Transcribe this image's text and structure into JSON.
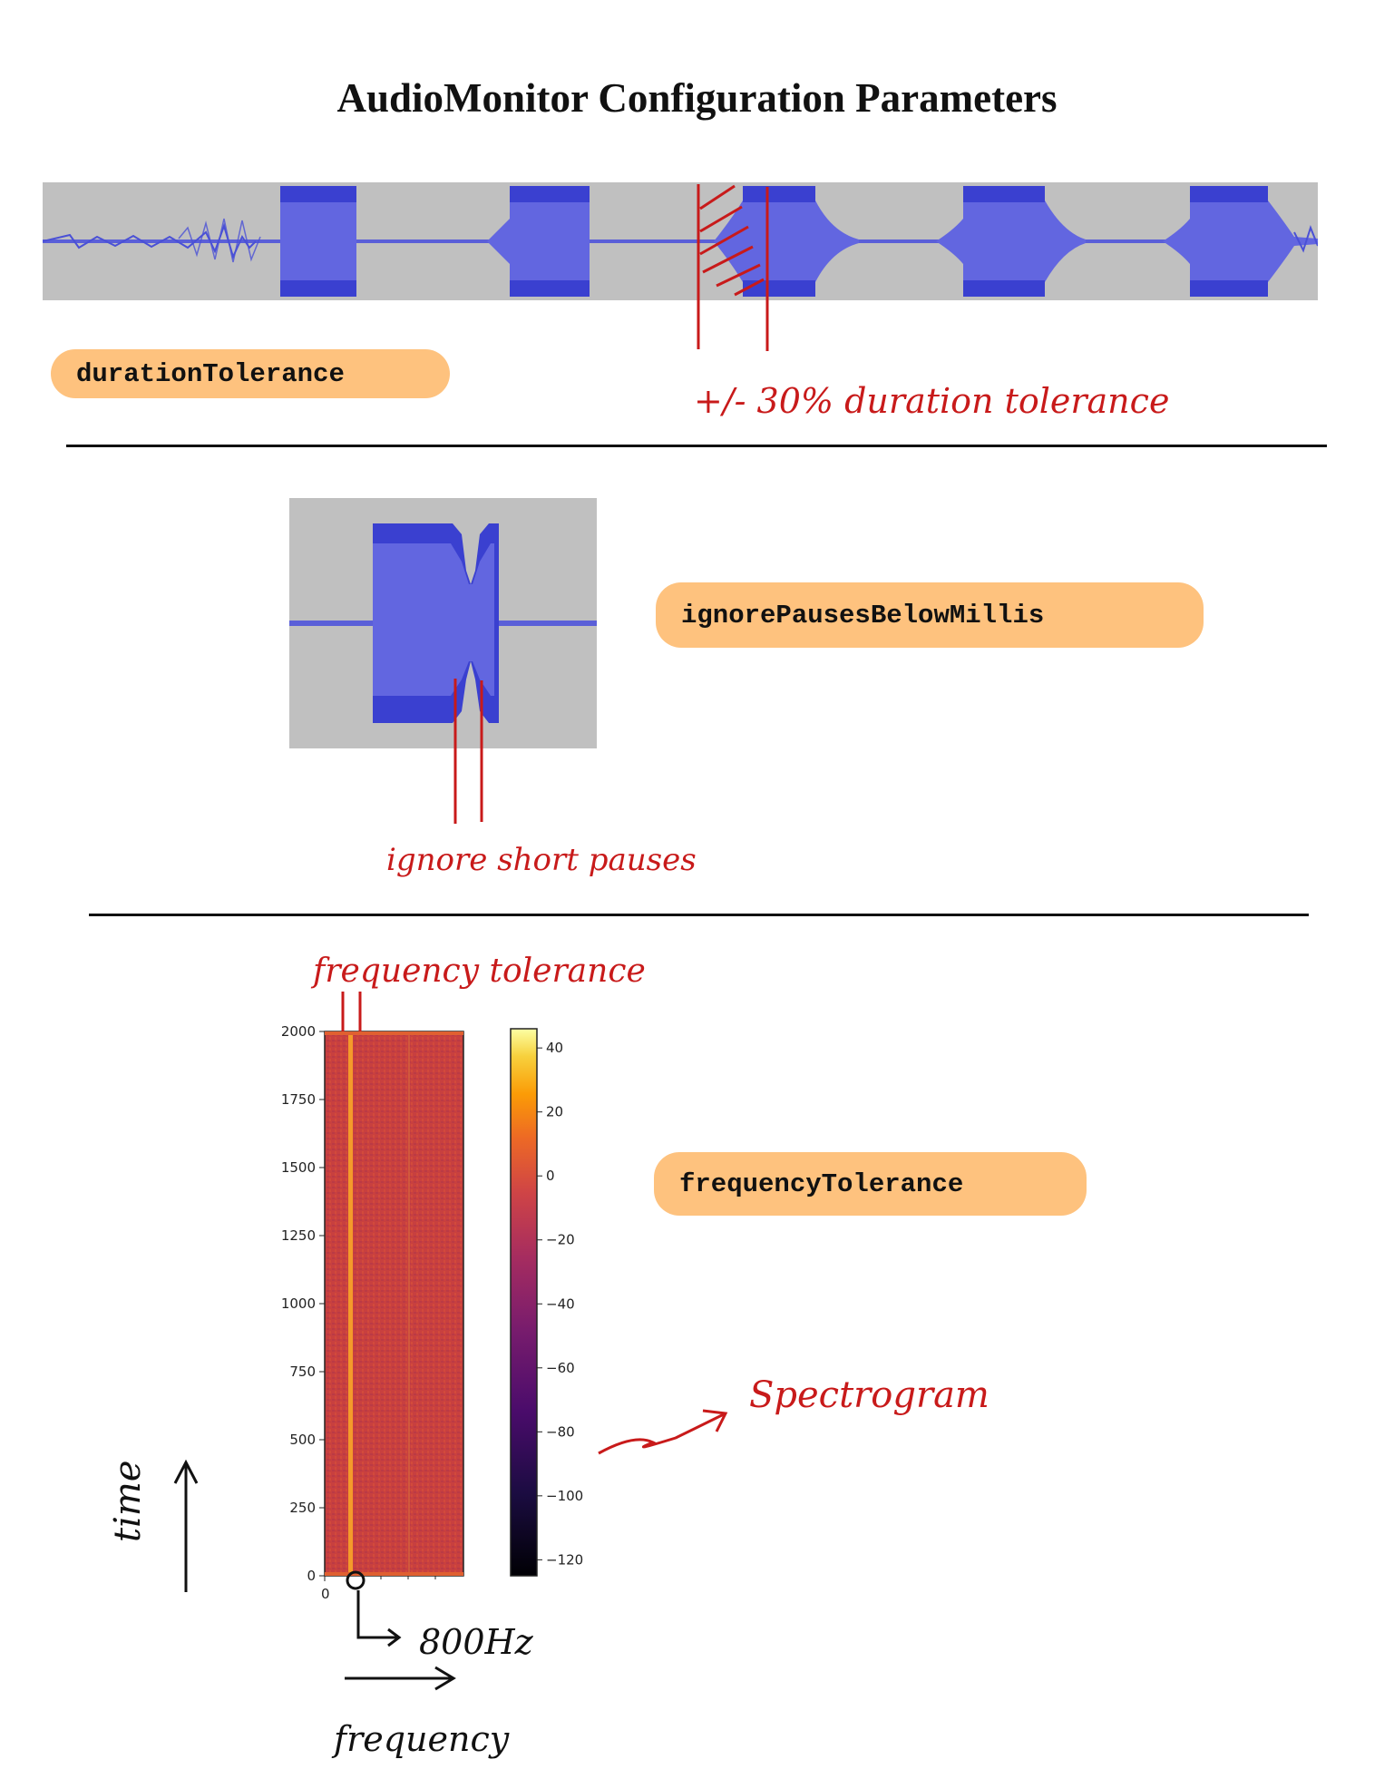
{
  "title": "AudioMonitor Configuration Parameters",
  "sections": {
    "duration": {
      "param": "durationTolerance",
      "annotation": "+/- 30% duration tolerance"
    },
    "pauses": {
      "param": "ignorePausesBelowMillis",
      "annotation": "ignore short pauses"
    },
    "frequency": {
      "param": "frequencyTolerance",
      "annotation_top": "frequency tolerance",
      "annotation_spectrogram": "Spectrogram",
      "annotation_freq_value": "800Hz",
      "axis_time": "time",
      "axis_frequency": "frequency"
    }
  },
  "colors": {
    "waveform": "#5a5fd8",
    "waveform_dark": "#3a40d0",
    "waveform_bg": "#c0c0c0",
    "pill": "#fec27e",
    "annotation": "#c81a1a"
  },
  "chart_data": {
    "type": "heatmap",
    "title": "",
    "xlabel": "",
    "ylabel": "",
    "x_ticks": [
      "0"
    ],
    "y_ticks": [
      0,
      250,
      500,
      750,
      1000,
      1250,
      1500,
      1750,
      2000
    ],
    "ylim": [
      0,
      2000
    ],
    "colorbar": {
      "ticks": [
        40,
        20,
        0,
        -20,
        -40,
        -60,
        -80,
        -100,
        -120
      ],
      "range": [
        -125,
        46
      ],
      "colormap": "inferno"
    },
    "dominant_band": "800Hz"
  }
}
